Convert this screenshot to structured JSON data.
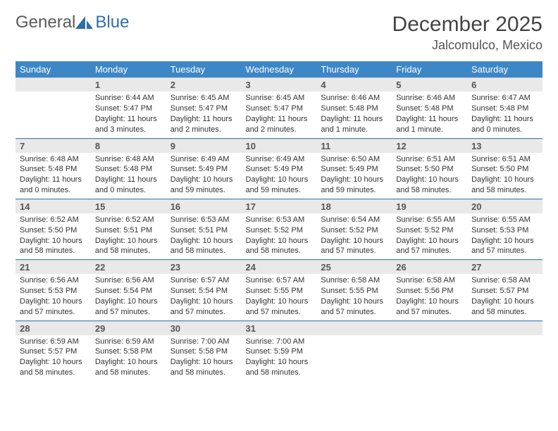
{
  "logo": {
    "general": "General",
    "blue": "Blue"
  },
  "title": "December 2025",
  "location": "Jalcomulco, Mexico",
  "colors": {
    "header_bg": "#3d87c7",
    "header_text": "#ffffff",
    "daynum_bg": "#e9e9e9",
    "rule": "#3d87c7",
    "logo_blue": "#2f6fa8"
  },
  "weekdays": [
    "Sunday",
    "Monday",
    "Tuesday",
    "Wednesday",
    "Thursday",
    "Friday",
    "Saturday"
  ],
  "start_offset": 1,
  "days": [
    {
      "n": 1,
      "sunrise": "6:44 AM",
      "sunset": "5:47 PM",
      "daylight": "11 hours and 3 minutes."
    },
    {
      "n": 2,
      "sunrise": "6:45 AM",
      "sunset": "5:47 PM",
      "daylight": "11 hours and 2 minutes."
    },
    {
      "n": 3,
      "sunrise": "6:45 AM",
      "sunset": "5:47 PM",
      "daylight": "11 hours and 2 minutes."
    },
    {
      "n": 4,
      "sunrise": "6:46 AM",
      "sunset": "5:48 PM",
      "daylight": "11 hours and 1 minute."
    },
    {
      "n": 5,
      "sunrise": "6:46 AM",
      "sunset": "5:48 PM",
      "daylight": "11 hours and 1 minute."
    },
    {
      "n": 6,
      "sunrise": "6:47 AM",
      "sunset": "5:48 PM",
      "daylight": "11 hours and 0 minutes."
    },
    {
      "n": 7,
      "sunrise": "6:48 AM",
      "sunset": "5:48 PM",
      "daylight": "11 hours and 0 minutes."
    },
    {
      "n": 8,
      "sunrise": "6:48 AM",
      "sunset": "5:48 PM",
      "daylight": "11 hours and 0 minutes."
    },
    {
      "n": 9,
      "sunrise": "6:49 AM",
      "sunset": "5:49 PM",
      "daylight": "10 hours and 59 minutes."
    },
    {
      "n": 10,
      "sunrise": "6:49 AM",
      "sunset": "5:49 PM",
      "daylight": "10 hours and 59 minutes."
    },
    {
      "n": 11,
      "sunrise": "6:50 AM",
      "sunset": "5:49 PM",
      "daylight": "10 hours and 59 minutes."
    },
    {
      "n": 12,
      "sunrise": "6:51 AM",
      "sunset": "5:50 PM",
      "daylight": "10 hours and 58 minutes."
    },
    {
      "n": 13,
      "sunrise": "6:51 AM",
      "sunset": "5:50 PM",
      "daylight": "10 hours and 58 minutes."
    },
    {
      "n": 14,
      "sunrise": "6:52 AM",
      "sunset": "5:50 PM",
      "daylight": "10 hours and 58 minutes."
    },
    {
      "n": 15,
      "sunrise": "6:52 AM",
      "sunset": "5:51 PM",
      "daylight": "10 hours and 58 minutes."
    },
    {
      "n": 16,
      "sunrise": "6:53 AM",
      "sunset": "5:51 PM",
      "daylight": "10 hours and 58 minutes."
    },
    {
      "n": 17,
      "sunrise": "6:53 AM",
      "sunset": "5:52 PM",
      "daylight": "10 hours and 58 minutes."
    },
    {
      "n": 18,
      "sunrise": "6:54 AM",
      "sunset": "5:52 PM",
      "daylight": "10 hours and 57 minutes."
    },
    {
      "n": 19,
      "sunrise": "6:55 AM",
      "sunset": "5:52 PM",
      "daylight": "10 hours and 57 minutes."
    },
    {
      "n": 20,
      "sunrise": "6:55 AM",
      "sunset": "5:53 PM",
      "daylight": "10 hours and 57 minutes."
    },
    {
      "n": 21,
      "sunrise": "6:56 AM",
      "sunset": "5:53 PM",
      "daylight": "10 hours and 57 minutes."
    },
    {
      "n": 22,
      "sunrise": "6:56 AM",
      "sunset": "5:54 PM",
      "daylight": "10 hours and 57 minutes."
    },
    {
      "n": 23,
      "sunrise": "6:57 AM",
      "sunset": "5:54 PM",
      "daylight": "10 hours and 57 minutes."
    },
    {
      "n": 24,
      "sunrise": "6:57 AM",
      "sunset": "5:55 PM",
      "daylight": "10 hours and 57 minutes."
    },
    {
      "n": 25,
      "sunrise": "6:58 AM",
      "sunset": "5:55 PM",
      "daylight": "10 hours and 57 minutes."
    },
    {
      "n": 26,
      "sunrise": "6:58 AM",
      "sunset": "5:56 PM",
      "daylight": "10 hours and 57 minutes."
    },
    {
      "n": 27,
      "sunrise": "6:58 AM",
      "sunset": "5:57 PM",
      "daylight": "10 hours and 58 minutes."
    },
    {
      "n": 28,
      "sunrise": "6:59 AM",
      "sunset": "5:57 PM",
      "daylight": "10 hours and 58 minutes."
    },
    {
      "n": 29,
      "sunrise": "6:59 AM",
      "sunset": "5:58 PM",
      "daylight": "10 hours and 58 minutes."
    },
    {
      "n": 30,
      "sunrise": "7:00 AM",
      "sunset": "5:58 PM",
      "daylight": "10 hours and 58 minutes."
    },
    {
      "n": 31,
      "sunrise": "7:00 AM",
      "sunset": "5:59 PM",
      "daylight": "10 hours and 58 minutes."
    }
  ]
}
